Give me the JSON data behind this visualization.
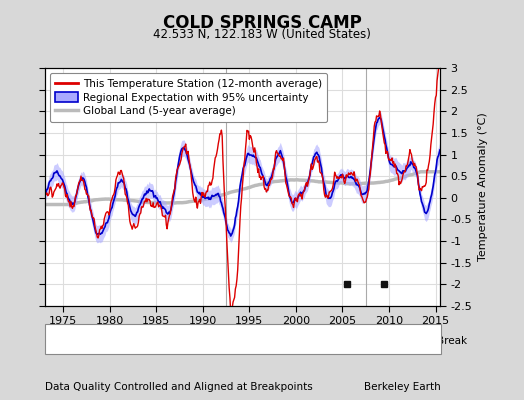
{
  "title": "COLD SPRINGS CAMP",
  "subtitle": "42.533 N, 122.183 W (United States)",
  "ylabel": "Temperature Anomaly (°C)",
  "xlabel_note": "Data Quality Controlled and Aligned at Breakpoints",
  "xlabel_note_right": "Berkeley Earth",
  "xmin": 1973.0,
  "xmax": 2015.5,
  "ymin": -2.5,
  "ymax": 3.0,
  "yticks": [
    -2.5,
    -2,
    -1.5,
    -1,
    -0.5,
    0,
    0.5,
    1,
    1.5,
    2,
    2.5,
    3
  ],
  "xticks": [
    1975,
    1980,
    1985,
    1990,
    1995,
    2000,
    2005,
    2010,
    2015
  ],
  "outer_bg_color": "#d8d8d8",
  "plot_bg_color": "#ffffff",
  "station_color": "#dd0000",
  "regional_color": "#0000cc",
  "regional_fill_color": "#aaaaff",
  "global_color": "#bbbbbb",
  "grid_color": "#dddddd",
  "legend_labels": [
    "This Temperature Station (12-month average)",
    "Regional Expectation with 95% uncertainty",
    "Global Land (5-year average)"
  ],
  "marker_events": {
    "empirical_breaks": [
      2005.5,
      2009.5
    ],
    "time_obs_change_x": 1992.5,
    "vertical_lines": [
      1992.5,
      2007.5
    ]
  },
  "seed": 12345
}
